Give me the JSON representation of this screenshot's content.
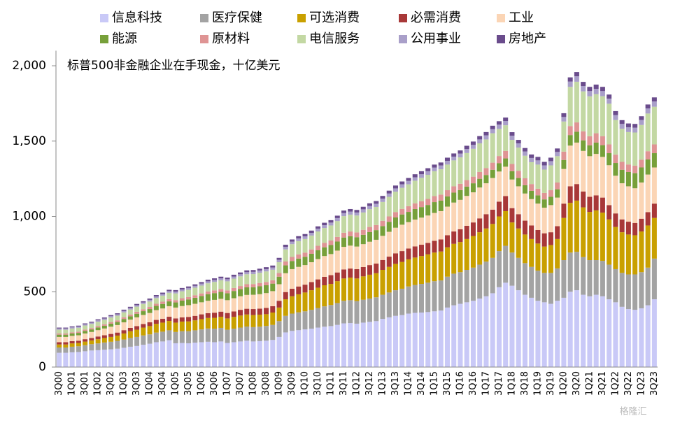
{
  "chart_data": {
    "type": "stacked_bar",
    "annotation": "标普500非金融企业在手现金，十亿美元",
    "watermark": "格隆汇",
    "categories": [
      "3Q00",
      null,
      "1Q01",
      null,
      "3Q01",
      null,
      "1Q02",
      null,
      "3Q02",
      null,
      "1Q03",
      null,
      "3Q03",
      null,
      "1Q04",
      null,
      "3Q04",
      null,
      "1Q05",
      null,
      "3Q05",
      null,
      "1Q06",
      null,
      "3Q06",
      null,
      "1Q07",
      null,
      "3Q07",
      null,
      "1Q08",
      null,
      "3Q08",
      null,
      "1Q09",
      null,
      "3Q09",
      null,
      "1Q10",
      null,
      "3Q10",
      null,
      "1Q11",
      null,
      "3Q11",
      null,
      "1Q12",
      null,
      "3Q12",
      null,
      "1Q13",
      null,
      "3Q13",
      null,
      "1Q14",
      null,
      "3Q14",
      null,
      "1Q15",
      null,
      "3Q15",
      null,
      "1Q16",
      null,
      "3Q16",
      null,
      "1Q17",
      null,
      "3Q17",
      null,
      "1Q18",
      null,
      "3Q18",
      null,
      "1Q19",
      null,
      "3Q19",
      null,
      "1Q20",
      null,
      "3Q20",
      null,
      "1Q21",
      null,
      "3Q21",
      null,
      "1Q22",
      null,
      "3Q22",
      null,
      "1Q23",
      null,
      "3Q23"
    ],
    "ylim": [
      0,
      2100
    ],
    "yticks": [
      0,
      500,
      {
        "value": 1000,
        "label": "1,000"
      },
      {
        "value": 1500,
        "label": "1,500"
      },
      {
        "value": 2000,
        "label": "2,000"
      }
    ],
    "grid": false,
    "legend": "top",
    "series": [
      {
        "name": "信息科技",
        "color": "#c9c9f7",
        "values": [
          95,
          95,
          98,
          100,
          105,
          110,
          112,
          115,
          118,
          122,
          128,
          135,
          140,
          148,
          155,
          165,
          170,
          178,
          158,
          160,
          158,
          162,
          165,
          168,
          165,
          170,
          160,
          165,
          170,
          175,
          170,
          172,
          175,
          180,
          200,
          230,
          240,
          245,
          250,
          255,
          262,
          268,
          272,
          280,
          290,
          292,
          288,
          295,
          300,
          305,
          320,
          330,
          340,
          345,
          355,
          360,
          362,
          365,
          370,
          375,
          395,
          410,
          420,
          430,
          440,
          455,
          470,
          490,
          530,
          560,
          540,
          510,
          480,
          460,
          440,
          430,
          420,
          440,
          460,
          500,
          510,
          480,
          470,
          480,
          470,
          450,
          430,
          400,
          385,
          380,
          390,
          410,
          450
        ]
      },
      {
        "name": "医疗保健",
        "color": "#a3a3a3",
        "values": [
          35,
          35,
          37,
          38,
          40,
          42,
          45,
          48,
          50,
          52,
          55,
          58,
          60,
          62,
          62,
          64,
          65,
          66,
          75,
          78,
          80,
          82,
          85,
          88,
          90,
          90,
          88,
          90,
          92,
          94,
          95,
          96,
          98,
          100,
          105,
          110,
          115,
          118,
          120,
          125,
          130,
          135,
          140,
          145,
          150,
          152,
          150,
          152,
          155,
          158,
          160,
          165,
          170,
          175,
          180,
          185,
          190,
          195,
          200,
          200,
          205,
          210,
          210,
          215,
          220,
          225,
          230,
          235,
          240,
          245,
          220,
          215,
          210,
          205,
          200,
          195,
          205,
          215,
          250,
          260,
          255,
          250,
          240,
          230,
          235,
          230,
          220,
          225,
          230,
          235,
          240,
          250,
          270
        ]
      },
      {
        "name": "可选消费",
        "color": "#c9a000",
        "values": [
          20,
          20,
          22,
          22,
          24,
          25,
          28,
          30,
          32,
          35,
          40,
          45,
          48,
          52,
          55,
          58,
          60,
          62,
          62,
          64,
          65,
          66,
          68,
          70,
          72,
          74,
          75,
          78,
          80,
          80,
          80,
          80,
          78,
          82,
          90,
          110,
          115,
          120,
          125,
          130,
          135,
          140,
          140,
          145,
          148,
          150,
          150,
          155,
          158,
          160,
          165,
          170,
          175,
          178,
          180,
          182,
          185,
          188,
          190,
          192,
          195,
          198,
          200,
          205,
          210,
          215,
          220,
          225,
          230,
          230,
          200,
          195,
          190,
          185,
          180,
          175,
          185,
          195,
          280,
          330,
          340,
          330,
          320,
          330,
          320,
          300,
          280,
          270,
          265,
          260,
          270,
          280,
          270
        ]
      },
      {
        "name": "必需消费",
        "color": "#a83838",
        "values": [
          15,
          15,
          15,
          15,
          16,
          16,
          18,
          18,
          20,
          20,
          22,
          22,
          24,
          24,
          25,
          26,
          26,
          28,
          28,
          28,
          30,
          30,
          32,
          32,
          34,
          34,
          36,
          36,
          38,
          38,
          40,
          40,
          42,
          42,
          45,
          48,
          50,
          52,
          52,
          54,
          55,
          56,
          58,
          58,
          60,
          60,
          62,
          62,
          64,
          64,
          66,
          68,
          70,
          72,
          72,
          74,
          75,
          76,
          78,
          80,
          80,
          82,
          85,
          88,
          90,
          92,
          95,
          95,
          98,
          100,
          95,
          95,
          92,
          90,
          90,
          88,
          85,
          85,
          95,
          110,
          110,
          105,
          100,
          100,
          100,
          95,
          90,
          85,
          85,
          82,
          85,
          88,
          95
        ]
      },
      {
        "name": "工业",
        "color": "#fbd5b5",
        "values": [
          35,
          35,
          35,
          36,
          38,
          40,
          42,
          45,
          48,
          50,
          52,
          55,
          58,
          60,
          62,
          65,
          68,
          70,
          72,
          75,
          78,
          80,
          80,
          82,
          85,
          85,
          85,
          88,
          90,
          92,
          95,
          96,
          98,
          100,
          110,
          125,
          130,
          130,
          130,
          132,
          135,
          138,
          140,
          145,
          150,
          152,
          150,
          152,
          155,
          158,
          160,
          165,
          170,
          175,
          175,
          178,
          180,
          182,
          185,
          188,
          190,
          192,
          195,
          198,
          200,
          205,
          205,
          210,
          200,
          195,
          190,
          185,
          180,
          175,
          175,
          170,
          180,
          190,
          230,
          270,
          275,
          270,
          270,
          275,
          270,
          265,
          250,
          240,
          235,
          230,
          240,
          250,
          240
        ]
      },
      {
        "name": "能源",
        "color": "#77a03a",
        "values": [
          15,
          15,
          16,
          16,
          17,
          17,
          18,
          18,
          20,
          20,
          22,
          22,
          24,
          25,
          26,
          28,
          30,
          32,
          34,
          36,
          38,
          40,
          42,
          44,
          45,
          46,
          46,
          48,
          48,
          50,
          50,
          52,
          52,
          50,
          50,
          52,
          54,
          55,
          55,
          56,
          58,
          58,
          60,
          60,
          62,
          62,
          62,
          62,
          64,
          64,
          65,
          66,
          68,
          68,
          68,
          70,
          70,
          70,
          72,
          70,
          68,
          66,
          65,
          62,
          60,
          58,
          55,
          55,
          55,
          55,
          55,
          55,
          55,
          55,
          55,
          55,
          55,
          55,
          60,
          70,
          72,
          70,
          72,
          75,
          78,
          80,
          85,
          90,
          95,
          100,
          100,
          100,
          95
        ]
      },
      {
        "name": "原材料",
        "color": "#df9494",
        "values": [
          8,
          8,
          8,
          8,
          9,
          9,
          10,
          10,
          11,
          11,
          12,
          12,
          13,
          13,
          14,
          14,
          15,
          15,
          15,
          16,
          16,
          17,
          17,
          18,
          18,
          19,
          19,
          20,
          20,
          21,
          21,
          22,
          22,
          22,
          24,
          26,
          27,
          28,
          28,
          29,
          30,
          30,
          30,
          31,
          32,
          32,
          32,
          33,
          34,
          34,
          35,
          36,
          36,
          37,
          38,
          38,
          39,
          40,
          40,
          40,
          41,
          42,
          42,
          43,
          44,
          45,
          46,
          47,
          48,
          50,
          48,
          47,
          46,
          45,
          44,
          43,
          44,
          45,
          55,
          60,
          62,
          60,
          60,
          62,
          60,
          58,
          55,
          52,
          50,
          50,
          52,
          55,
          58
        ]
      },
      {
        "name": "电信服务",
        "color": "#c3d8a3",
        "values": [
          25,
          25,
          25,
          26,
          27,
          28,
          28,
          29,
          30,
          31,
          32,
          33,
          34,
          35,
          36,
          38,
          40,
          42,
          45,
          46,
          48,
          50,
          52,
          54,
          56,
          58,
          60,
          62,
          64,
          66,
          66,
          68,
          70,
          70,
          72,
          80,
          85,
          88,
          90,
          92,
          95,
          98,
          100,
          105,
          110,
          112,
          112,
          115,
          118,
          120,
          125,
          130,
          135,
          140,
          145,
          150,
          155,
          160,
          165,
          168,
          170,
          172,
          175,
          180,
          185,
          190,
          190,
          195,
          180,
          170,
          160,
          155,
          150,
          145,
          160,
          155,
          165,
          175,
          200,
          260,
          270,
          265,
          265,
          260,
          265,
          270,
          230,
          220,
          215,
          220,
          230,
          250,
          250
        ]
      },
      {
        "name": "公用事业",
        "color": "#a99fc9",
        "values": [
          8,
          8,
          8,
          8,
          8,
          8,
          9,
          9,
          9,
          9,
          10,
          10,
          10,
          10,
          11,
          11,
          11,
          11,
          12,
          12,
          12,
          12,
          13,
          13,
          13,
          13,
          14,
          14,
          14,
          14,
          15,
          15,
          15,
          15,
          16,
          17,
          17,
          18,
          18,
          18,
          19,
          19,
          19,
          20,
          20,
          20,
          20,
          21,
          21,
          21,
          22,
          22,
          22,
          23,
          23,
          23,
          24,
          24,
          24,
          25,
          25,
          25,
          25,
          26,
          26,
          26,
          27,
          27,
          28,
          28,
          28,
          28,
          28,
          28,
          28,
          28,
          28,
          28,
          30,
          35,
          36,
          35,
          35,
          35,
          34,
          34,
          33,
          32,
          32,
          32,
          33,
          34,
          35
        ]
      },
      {
        "name": "房地产",
        "color": "#6a4c8c",
        "values": [
          6,
          6,
          6,
          6,
          6,
          6,
          7,
          7,
          7,
          7,
          8,
          8,
          8,
          8,
          9,
          9,
          9,
          9,
          10,
          10,
          10,
          10,
          10,
          11,
          11,
          11,
          11,
          12,
          12,
          12,
          12,
          12,
          13,
          13,
          13,
          14,
          14,
          15,
          15,
          15,
          15,
          16,
          16,
          16,
          17,
          17,
          17,
          17,
          18,
          18,
          18,
          19,
          19,
          19,
          19,
          20,
          20,
          20,
          20,
          20,
          21,
          21,
          21,
          22,
          22,
          22,
          22,
          23,
          23,
          23,
          23,
          23,
          23,
          23,
          23,
          23,
          23,
          23,
          25,
          28,
          28,
          28,
          28,
          28,
          28,
          27,
          26,
          25,
          25,
          25,
          25,
          26,
          27
        ]
      }
    ]
  }
}
